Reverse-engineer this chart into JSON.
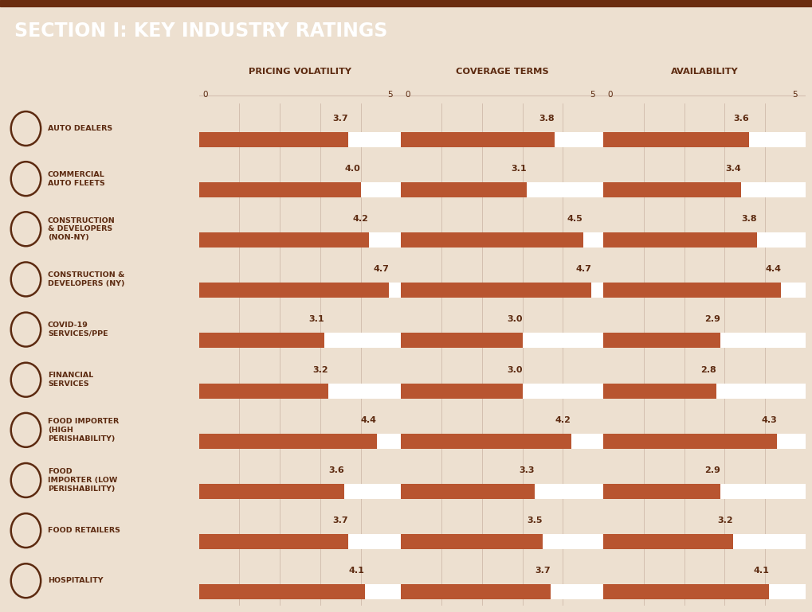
{
  "title": "SECTION I: KEY INDUSTRY RATINGS",
  "title_bg_color": "#C0522A",
  "title_text_color": "#FFFFFF",
  "title_border_color": "#6B2D0F",
  "bg_color": "#EDE0D0",
  "bar_color": "#B85530",
  "bar_bg_color": "#FFFFFF",
  "grid_color": "#D4BFB0",
  "text_color": "#5C2A10",
  "col_headers": [
    "PRICING VOLATILITY",
    "COVERAGE TERMS",
    "AVAILABILITY"
  ],
  "industries": [
    "AUTO DEALERS",
    "COMMERCIAL\nAUTO FLEETS",
    "CONSTRUCTION\n& DEVELOPERS\n(NON-NY)",
    "CONSTRUCTION &\nDEVELOPERS (NY)",
    "COVID-19\nSERVICES/PPE",
    "FINANCIAL\nSERVICES",
    "FOOD IMPORTER\n(HIGH\nPERISHABILITY)",
    "FOOD\nIMPORTER (LOW\nPERISHABILITY)",
    "FOOD RETAILERS",
    "HOSPITALITY"
  ],
  "pricing_volatility": [
    3.7,
    4.0,
    4.2,
    4.7,
    3.1,
    3.2,
    4.4,
    3.6,
    3.7,
    4.1
  ],
  "coverage_terms": [
    3.8,
    3.1,
    4.5,
    4.7,
    3.0,
    3.0,
    4.2,
    3.3,
    3.5,
    3.7
  ],
  "availability": [
    3.6,
    3.4,
    3.8,
    4.4,
    2.9,
    2.8,
    4.3,
    2.9,
    3.2,
    4.1
  ],
  "xmax": 5,
  "xmin": 0
}
